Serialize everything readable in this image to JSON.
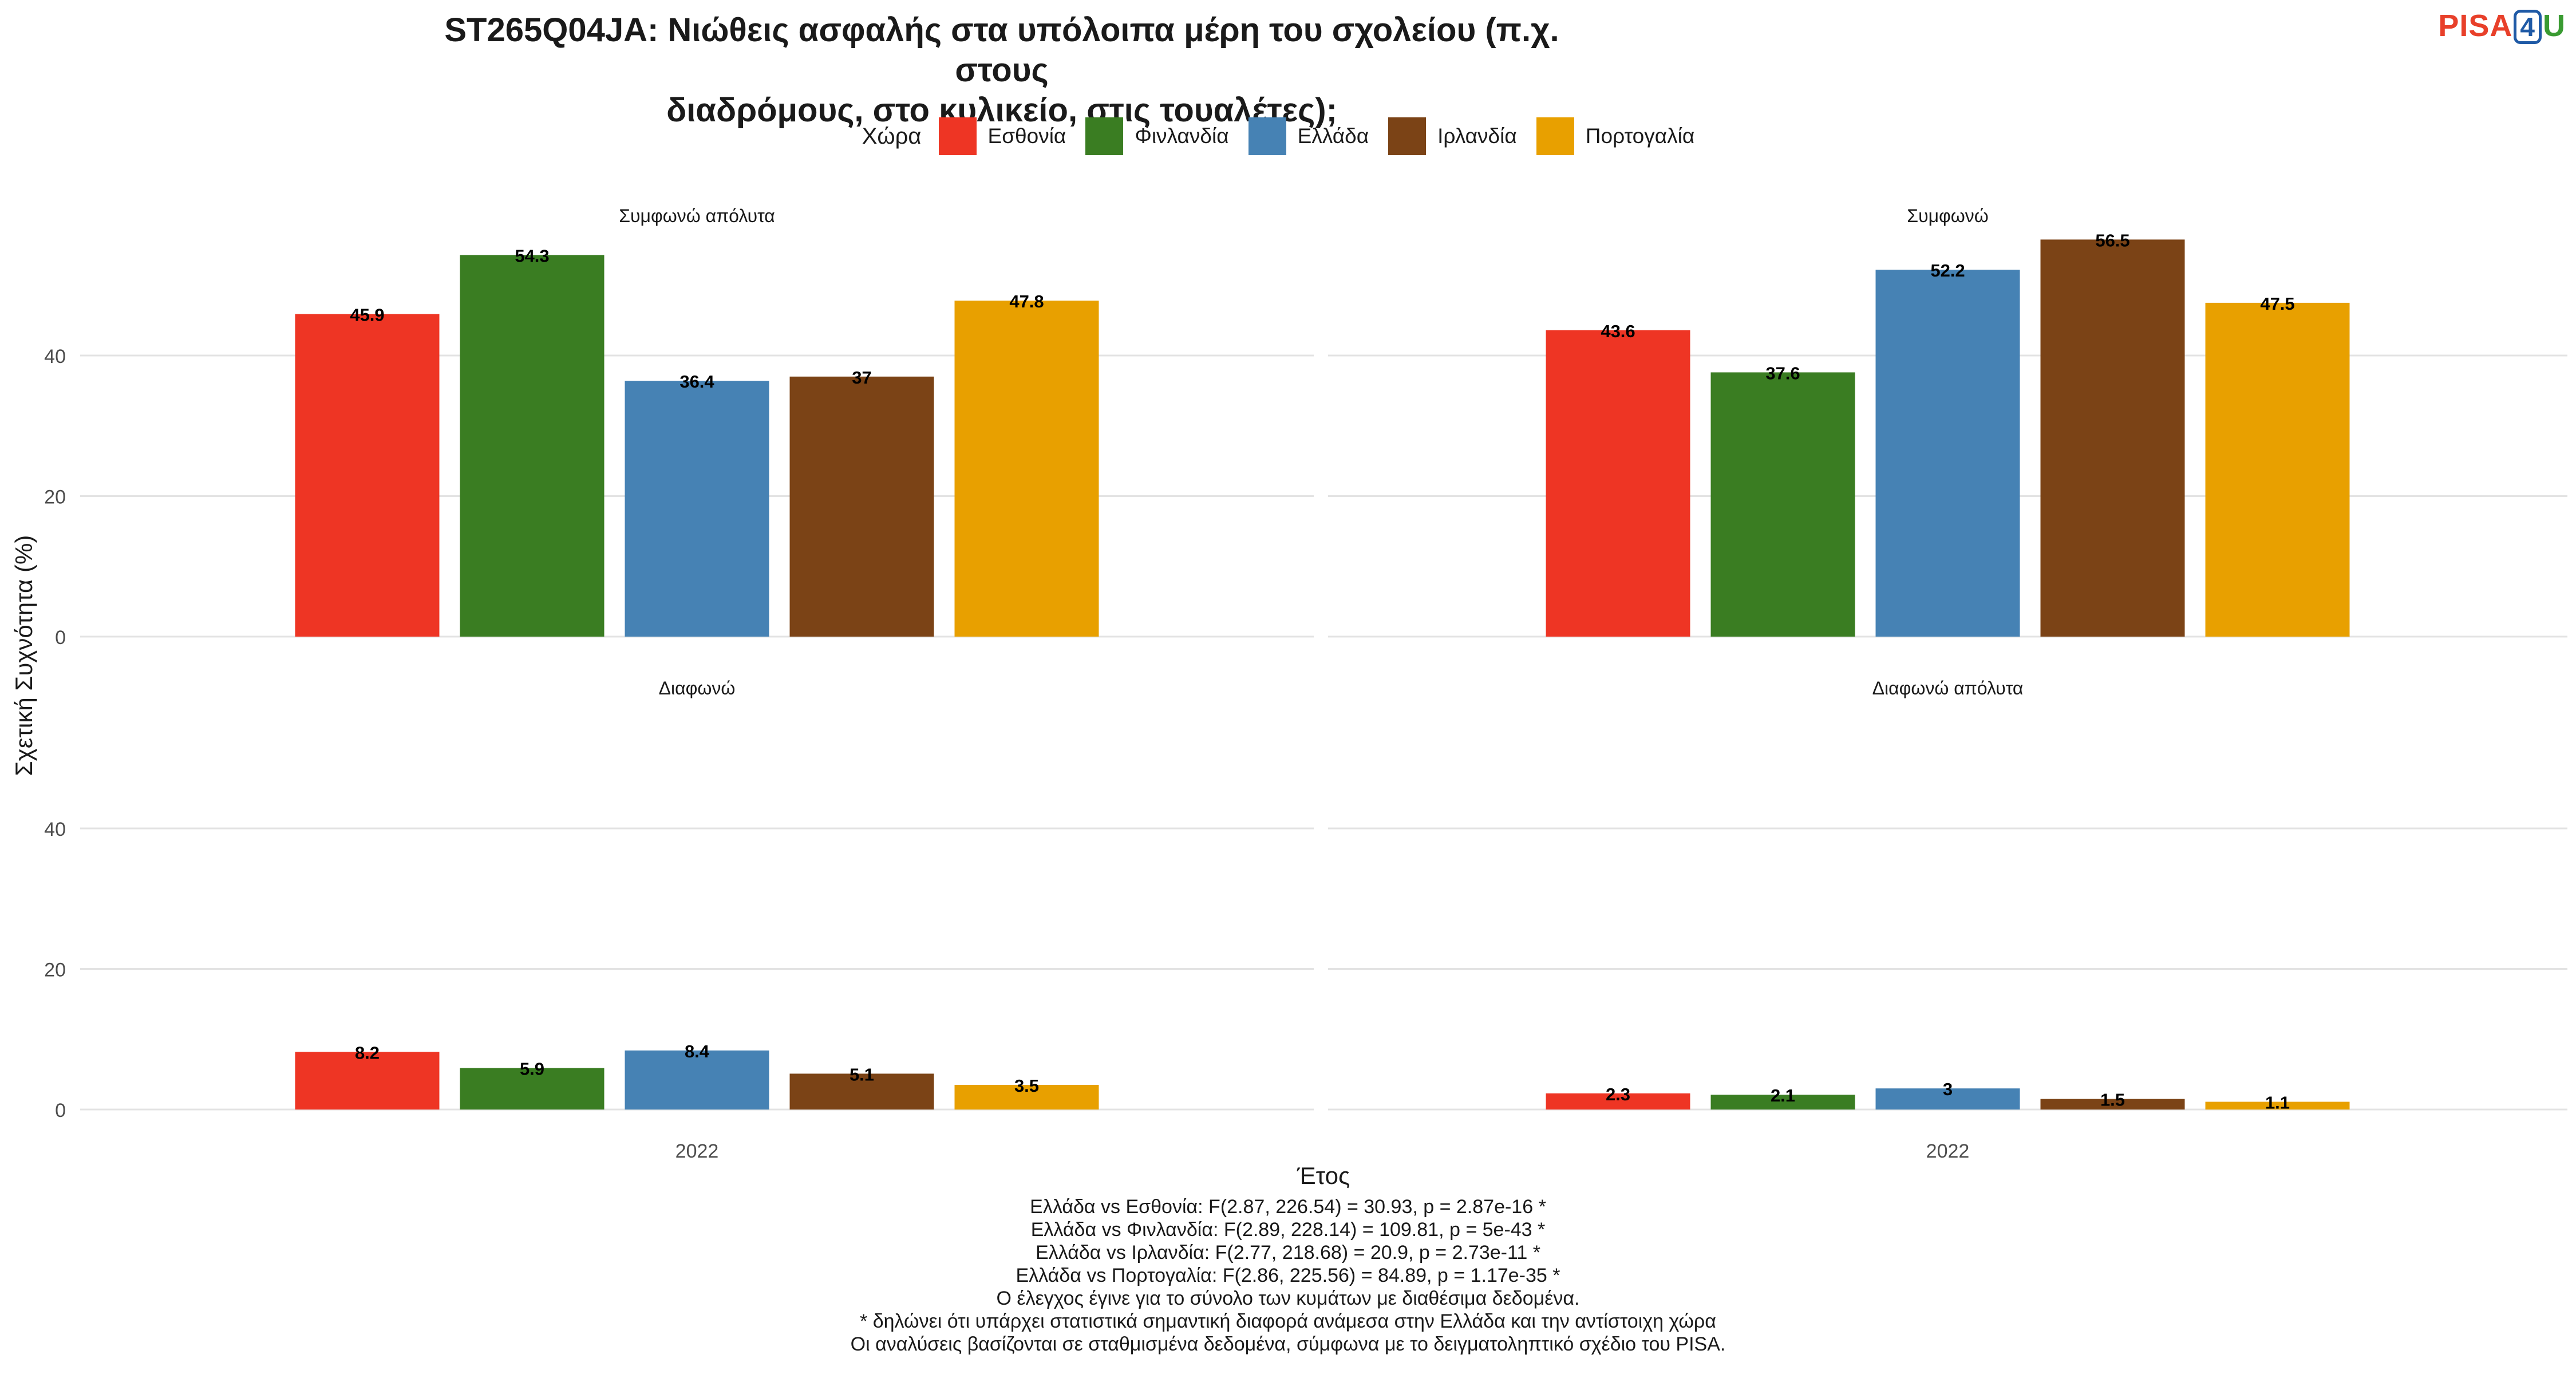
{
  "title_line1": "ST265Q04JA: Νιώθεις ασφαλής στα υπόλοιπα μέρη του σχολείου (π.χ. στους",
  "title_line2": "διαδρόμους, στο κυλικείο, στις τουαλέτες);",
  "logo": {
    "pisa": "PISA",
    "four": "4",
    "u": "U"
  },
  "legend": {
    "title": "Χώρα",
    "items": [
      {
        "label": "Εσθονία",
        "color": "#ee3524"
      },
      {
        "label": "Φινλανδία",
        "color": "#3a7d22"
      },
      {
        "label": "Ελλάδα",
        "color": "#4682b4"
      },
      {
        "label": "Ιρλανδία",
        "color": "#7b4316"
      },
      {
        "label": "Πορτογαλία",
        "color": "#e8a000"
      }
    ]
  },
  "chart_data": {
    "type": "bar",
    "ylabel": "Σχετική Συχνότητα (%)",
    "xlabel": "Έτος",
    "ylim": [
      0,
      58
    ],
    "yticks": [
      0,
      20,
      40
    ],
    "grid": true,
    "legend_position": "top",
    "categories": [
      "2022"
    ],
    "series_names": [
      "Εσθονία",
      "Φινλανδία",
      "Ελλάδα",
      "Ιρλανδία",
      "Πορτογαλία"
    ],
    "colors": [
      "#ee3524",
      "#3a7d22",
      "#4682b4",
      "#7b4316",
      "#e8a000"
    ],
    "facets": [
      {
        "label": "Συμφωνώ απόλυτα",
        "values": [
          45.9,
          54.3,
          36.4,
          37,
          47.8
        ],
        "value_labels": [
          "45.9",
          "54.3",
          "36.4",
          "37",
          "47.8"
        ]
      },
      {
        "label": "Συμφωνώ",
        "values": [
          43.6,
          37.6,
          52.2,
          56.5,
          47.5
        ],
        "value_labels": [
          "43.6",
          "37.6",
          "52.2",
          "56.5",
          "47.5"
        ]
      },
      {
        "label": "Διαφωνώ",
        "values": [
          8.2,
          5.9,
          8.4,
          5.1,
          3.5
        ],
        "value_labels": [
          "8.2",
          "5.9",
          "8.4",
          "5.1",
          "3.5"
        ]
      },
      {
        "label": "Διαφωνώ απόλυτα",
        "values": [
          2.3,
          2.1,
          3,
          1.5,
          1.1
        ],
        "value_labels": [
          "2.3",
          "2.1",
          "3",
          "1.5",
          "1.1"
        ]
      }
    ]
  },
  "notes": [
    "Ελλάδα vs Εσθονία: F(2.87, 226.54) = 30.93, p = 2.87e-16 *",
    "Ελλάδα vs Φινλανδία: F(2.89, 228.14) = 109.81, p = 5e-43 *",
    "Ελλάδα vs Ιρλανδία: F(2.77, 218.68) = 20.9, p = 2.73e-11 *",
    "Ελλάδα vs Πορτογαλία: F(2.86, 225.56) = 84.89, p = 1.17e-35 *",
    "Ο έλεγχος έγινε για το σύνολο των κυμάτων με διαθέσιμα δεδομένα.",
    "* δηλώνει ότι υπάρχει στατιστικά σημαντική διαφορά ανάμεσα στην Ελλάδα και την αντίστοιχη χώρα",
    "Οι αναλύσεις βασίζονται σε σταθμισμένα δεδομένα, σύμφωνα με το δειγματοληπτικό σχέδιο του PISA."
  ]
}
